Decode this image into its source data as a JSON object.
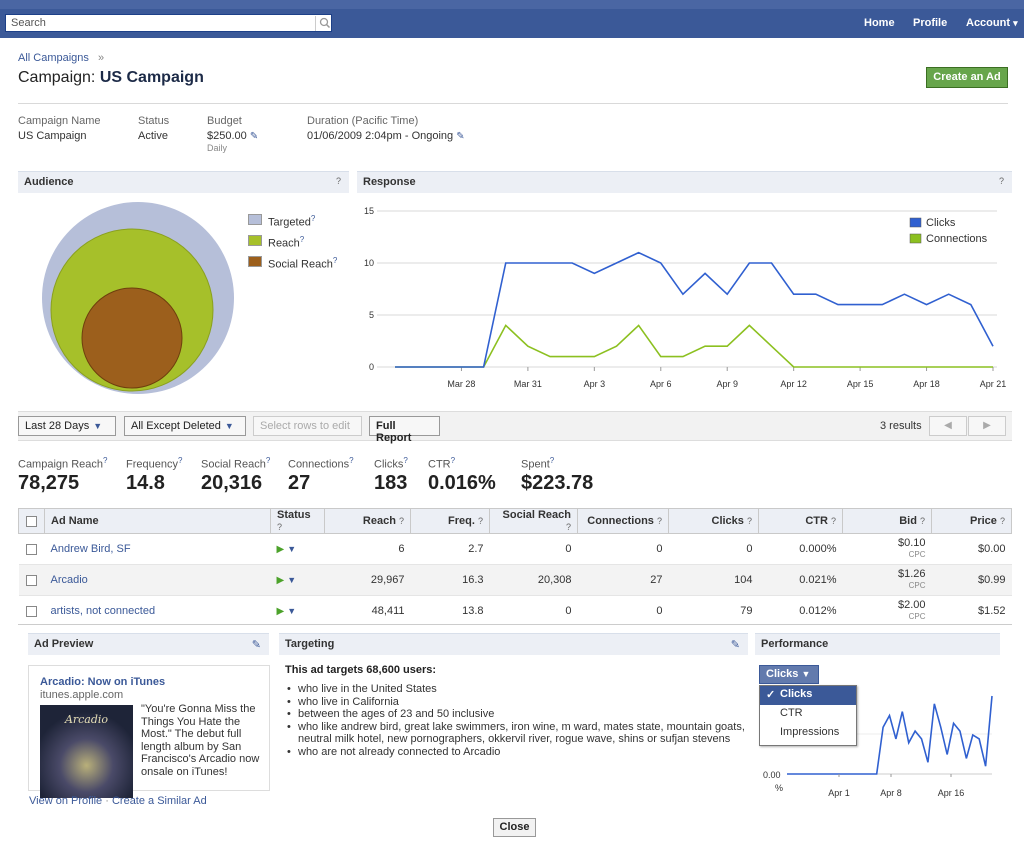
{
  "topbar": {
    "search_placeholder": "Search",
    "nav": [
      "Home",
      "Profile",
      "Account"
    ],
    "account_caret": "▾"
  },
  "header": {
    "breadcrumb": "All Campaigns",
    "breadcrumb_sep": "»",
    "title_prefix": "Campaign:",
    "title_name": "US Campaign",
    "create_ad": "Create an Ad"
  },
  "info": {
    "campaign_name_label": "Campaign Name",
    "campaign_name": "US Campaign",
    "status_label": "Status",
    "status": "Active",
    "budget_label": "Budget",
    "budget": "$250.00",
    "budget_sub": "Daily",
    "duration_label": "Duration (Pacific Time)",
    "duration": "01/06/2009 2:04pm - Ongoing"
  },
  "audience": {
    "title": "Audience",
    "help": "?",
    "legend": [
      {
        "label": "Targeted",
        "color": "#b6bfd9"
      },
      {
        "label": "Reach",
        "color": "#a6c02a"
      },
      {
        "label": "Social Reach",
        "color": "#9c5f1c"
      }
    ]
  },
  "response": {
    "title": "Response",
    "help": "?"
  },
  "chart_data": [
    {
      "type": "line",
      "title": "",
      "x": [
        "Mar 25",
        "Mar 26",
        "Mar 27",
        "Mar 28",
        "Mar 29",
        "Mar 30",
        "Mar 31",
        "Apr 1",
        "Apr 2",
        "Apr 3",
        "Apr 4",
        "Apr 5",
        "Apr 6",
        "Apr 7",
        "Apr 8",
        "Apr 9",
        "Apr 10",
        "Apr 11",
        "Apr 12",
        "Apr 13",
        "Apr 14",
        "Apr 15",
        "Apr 16",
        "Apr 17",
        "Apr 18",
        "Apr 19",
        "Apr 20",
        "Apr 21"
      ],
      "tick_labels": [
        "Mar 28",
        "Mar 31",
        "Apr 3",
        "Apr 6",
        "Apr 9",
        "Apr 12",
        "Apr 15",
        "Apr 18",
        "Apr 21"
      ],
      "ylim": [
        0,
        15
      ],
      "yticks": [
        0,
        5,
        10,
        15
      ],
      "legend_position": "top-right",
      "series": [
        {
          "name": "Clicks",
          "color": "#3060d0",
          "values": [
            0,
            0,
            0,
            0,
            0,
            10,
            10,
            10,
            10,
            9,
            10,
            11,
            10,
            7,
            9,
            7,
            10,
            10,
            7,
            7,
            6,
            6,
            6,
            7,
            6,
            7,
            6,
            2
          ]
        },
        {
          "name": "Connections",
          "color": "#8cc020",
          "values": [
            0,
            0,
            0,
            0,
            0,
            4,
            2,
            1,
            1,
            1,
            2,
            4,
            1,
            1,
            2,
            2,
            4,
            2,
            0,
            0,
            0,
            0,
            0,
            0,
            0,
            0,
            0,
            0
          ]
        }
      ]
    },
    {
      "type": "line",
      "title": "",
      "x_tick_labels": [
        "Apr 1",
        "Apr 8",
        "Apr 16"
      ],
      "y_tick_labels": [
        "0.00",
        "%"
      ],
      "values": [
        0,
        0,
        0,
        0,
        0,
        0,
        0,
        0,
        0,
        0,
        0,
        0,
        0,
        0,
        0,
        1.2,
        1.5,
        0.9,
        1.6,
        0.8,
        1.1,
        0.9,
        0.3,
        1.8,
        1.2,
        0.5,
        1.3,
        1.1,
        0.4,
        1.0,
        0.9,
        0.2,
        2.0
      ]
    }
  ],
  "toolbar": {
    "period": "Last 28 Days",
    "filter": "All Except Deleted",
    "select_rows": "Select rows to edit",
    "full_report": "Full Report",
    "results": "3 results",
    "prev": "◀",
    "next": "▶"
  },
  "stats": [
    {
      "label": "Campaign Reach",
      "value": "78,275"
    },
    {
      "label": "Frequency",
      "value": "14.8"
    },
    {
      "label": "Social Reach",
      "value": "20,316"
    },
    {
      "label": "Connections",
      "value": "27"
    },
    {
      "label": "Clicks",
      "value": "183"
    },
    {
      "label": "CTR",
      "value": "0.016%"
    },
    {
      "label": "Spent",
      "value": "$223.78"
    }
  ],
  "table": {
    "headers": [
      "Ad Name",
      "Status",
      "Reach",
      "Freq.",
      "Social Reach",
      "Connections",
      "Clicks",
      "CTR",
      "Bid",
      "Price"
    ],
    "rows": [
      {
        "name": "Andrew Bird, SF",
        "reach": "6",
        "freq": "2.7",
        "social": "0",
        "conn": "0",
        "clicks": "0",
        "ctr": "0.000%",
        "bid": "$0.10",
        "bid_type": "CPC",
        "price": "$0.00"
      },
      {
        "name": "Arcadio",
        "reach": "29,967",
        "freq": "16.3",
        "social": "20,308",
        "conn": "27",
        "clicks": "104",
        "ctr": "0.021%",
        "bid": "$1.26",
        "bid_type": "CPC",
        "price": "$0.99"
      },
      {
        "name": "artists, not connected",
        "reach": "48,411",
        "freq": "13.8",
        "social": "0",
        "conn": "0",
        "clicks": "79",
        "ctr": "0.012%",
        "bid": "$2.00",
        "bid_type": "CPC",
        "price": "$1.52"
      }
    ]
  },
  "ad_preview": {
    "title": "Ad Preview",
    "ad_title": "Arcadio: Now on iTunes",
    "ad_url": "itunes.apple.com",
    "ad_body": "\"You're Gonna Miss the Things You Hate the Most.\" The debut full length album by San Francisco's Arcadio now onsale on iTunes!",
    "album_title": "Arcadio",
    "view_profile": "View on Profile",
    "sep": "·",
    "create_similar": "Create a Similar Ad"
  },
  "targeting": {
    "title": "Targeting",
    "intro": "This ad targets 68,600 users:",
    "items": [
      "who live in the United States",
      "who live in California",
      "between the ages of 23 and 50 inclusive",
      "who like andrew bird, great lake swimmers, iron wine, m ward, mates state, mountain goats, neutral milk hotel, new pornographers, okkervil river, rogue wave, shins or sufjan stevens",
      "who are not already connected to Arcadio"
    ]
  },
  "performance": {
    "title": "Performance",
    "dropdown": "Clicks",
    "menu": [
      "Clicks",
      "CTR",
      "Impressions"
    ],
    "check": "✓"
  },
  "close": "Close"
}
